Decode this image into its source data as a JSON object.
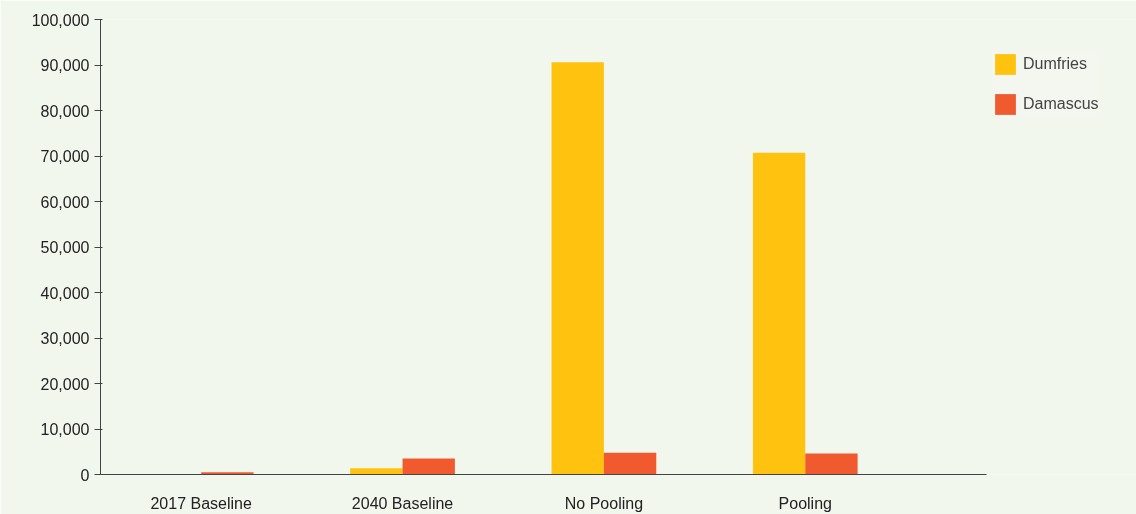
{
  "chart_data": {
    "type": "bar",
    "categories": [
      "2017 Baseline",
      "2040 Baseline",
      "No Pooling",
      "Pooling"
    ],
    "series": [
      {
        "name": "Dumfries",
        "color": "#ffc20e",
        "values": [
          0,
          1400,
          90600,
          70700
        ]
      },
      {
        "name": "Damascus",
        "color": "#f15a2f",
        "values": [
          500,
          3500,
          4800,
          4600
        ]
      }
    ],
    "ylim": [
      0,
      100000
    ],
    "yticks": [
      {
        "value": 0,
        "label": "0"
      },
      {
        "value": 10000,
        "label": "10,000"
      },
      {
        "value": 20000,
        "label": "20,000"
      },
      {
        "value": 30000,
        "label": "30,000"
      },
      {
        "value": 40000,
        "label": "40,000"
      },
      {
        "value": 50000,
        "label": "50,000"
      },
      {
        "value": 60000,
        "label": "60,000"
      },
      {
        "value": 70000,
        "label": "70,000"
      },
      {
        "value": 80000,
        "label": "80,000"
      },
      {
        "value": 90000,
        "label": "90,000"
      },
      {
        "value": 100000,
        "label": "100,000"
      }
    ],
    "grid": false,
    "legend": "top right"
  }
}
